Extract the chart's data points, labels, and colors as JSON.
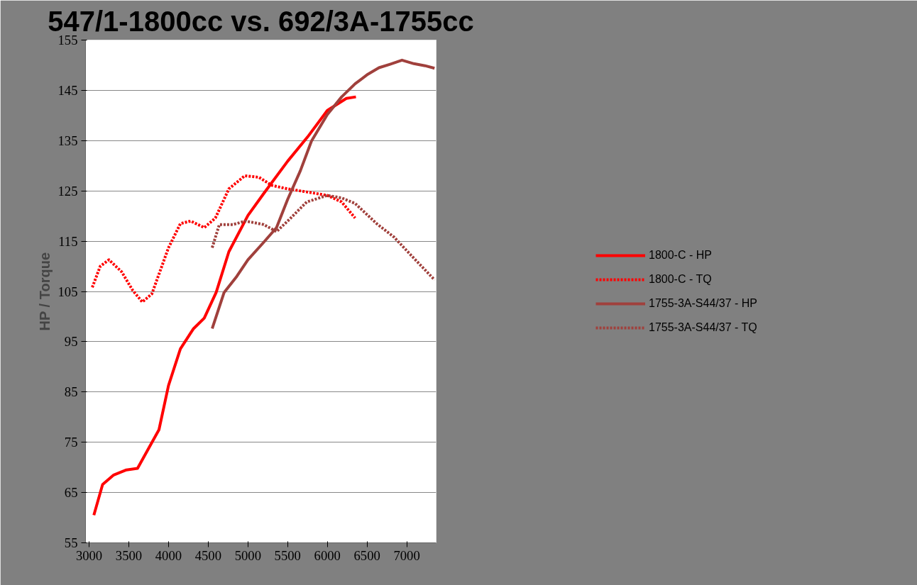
{
  "chart_data": {
    "type": "line",
    "title": "547/1-1800cc vs. 692/3A-1755cc",
    "ylabel": "HP / Torque",
    "xlim": [
      2955,
      7370
    ],
    "xticks": [
      3000,
      3500,
      4000,
      4500,
      5000,
      5500,
      6000,
      6500,
      7000
    ],
    "ylim": [
      55,
      155
    ],
    "yticks": [
      55,
      65,
      75,
      85,
      95,
      105,
      115,
      125,
      135,
      145,
      155
    ],
    "grid": "y",
    "legend": "right",
    "series": [
      {
        "name": "1800-C - HP",
        "color": "#ff0000",
        "line_style": "solid",
        "x": [
          3060,
          3170,
          3310,
          3470,
          3610,
          3740,
          3880,
          4000,
          4150,
          4315,
          4450,
          4600,
          4760,
          5000,
          5200,
          5500,
          5750,
          6000,
          6240,
          6360
        ],
        "values": [
          60.5,
          66.6,
          68.5,
          69.5,
          69.8,
          73.5,
          77.5,
          86.3,
          93.6,
          97.6,
          99.7,
          104.8,
          112.9,
          120.1,
          124.5,
          130.9,
          135.7,
          141,
          143.4,
          143.7
        ]
      },
      {
        "name": "1800-C - TQ",
        "color": "#ff0000",
        "line_style": "dotted",
        "x": [
          3040,
          3140,
          3250,
          3410,
          3550,
          3670,
          3790,
          4000,
          4150,
          4280,
          4450,
          4590,
          4760,
          4960,
          5140,
          5300,
          5500,
          5740,
          6000,
          6180,
          6350
        ],
        "values": [
          105.8,
          110,
          111.3,
          108.9,
          105.2,
          102.9,
          104.5,
          113.7,
          118.5,
          119,
          117.7,
          119.6,
          125.4,
          128,
          127.7,
          126.1,
          125.4,
          124.8,
          124.1,
          122.8,
          119.6
        ]
      },
      {
        "name": "1755-3A-S44/37 - HP",
        "color": "#a0403c",
        "line_style": "solid",
        "x": [
          4550,
          4700,
          4860,
          5000,
          5200,
          5360,
          5500,
          5660,
          5800,
          6000,
          6180,
          6350,
          6510,
          6650,
          6790,
          6940,
          7090,
          7230,
          7350
        ],
        "values": [
          97.6,
          104.8,
          108,
          111.3,
          114.8,
          117.7,
          123.3,
          129,
          134.9,
          140.2,
          143.7,
          146.3,
          148.2,
          149.5,
          150.2,
          151,
          150.3,
          149.9,
          149.4
        ]
      },
      {
        "name": "1755-3A-S44/37 - TQ",
        "color": "#a0403c",
        "line_style": "dotted",
        "x": [
          4550,
          4640,
          4810,
          4970,
          5200,
          5360,
          5520,
          5740,
          6000,
          6180,
          6350,
          6620,
          6840,
          7060,
          7350
        ],
        "values": [
          113.7,
          118.3,
          118.3,
          119,
          118.3,
          116.9,
          119.3,
          122.8,
          124.1,
          123.6,
          122.5,
          118.5,
          115.8,
          112.1,
          107.3
        ]
      }
    ]
  }
}
